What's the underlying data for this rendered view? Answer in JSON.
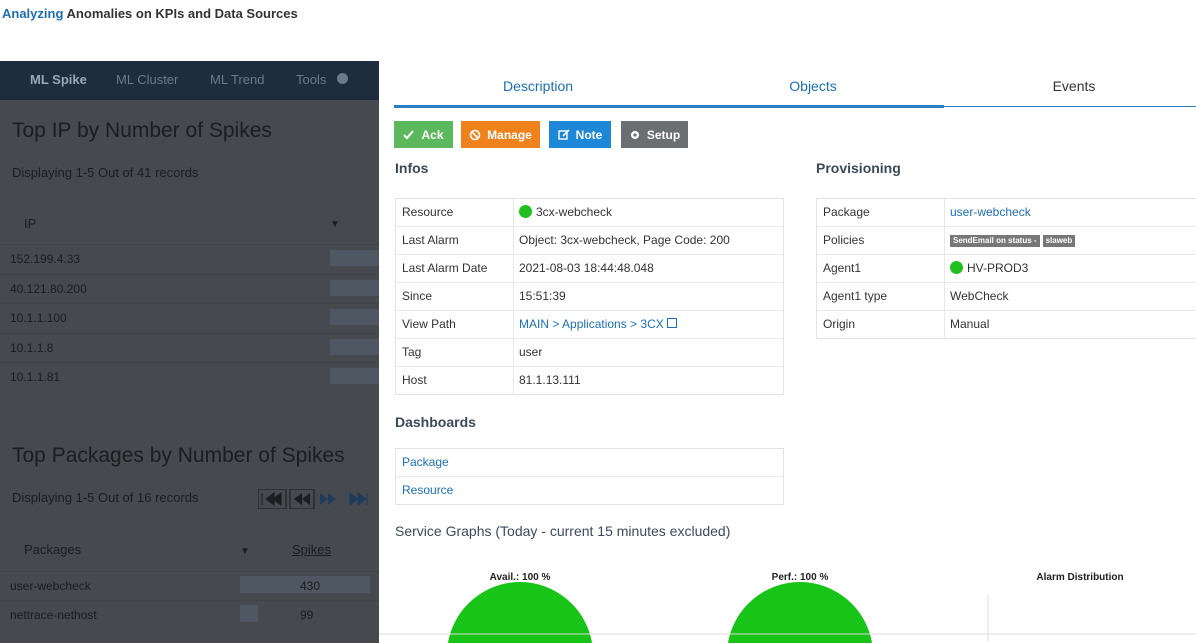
{
  "header": {
    "highlight": "Analyzing",
    "title": "Anomalies on KPIs and Data Sources"
  },
  "background": {
    "nav": [
      "ML Spike",
      "ML Cluster",
      "ML Trend",
      "Tools"
    ],
    "ip_section": {
      "title": "Top IP by Number of Spikes",
      "summary": "Displaying 1-5 Out of 41 records",
      "column": "IP",
      "rows": [
        "152.199.4.33",
        "40.121.80.200",
        "10.1.1.100",
        "10.1.1.8",
        "10.1.1.81"
      ]
    },
    "packages_section": {
      "title": "Top Packages by Number of Spikes",
      "summary": "Displaying 1-5 Out of 16 records",
      "columns": [
        "Packages",
        "Spikes"
      ],
      "rows": [
        {
          "name": "user-webcheck",
          "spikes": 430
        },
        {
          "name": "nettrace-nethost",
          "spikes": 99
        }
      ]
    }
  },
  "panel": {
    "tabs": [
      "Description",
      "Objects",
      "Events"
    ],
    "buttons": [
      "Ack",
      "Manage",
      "Note",
      "Setup"
    ],
    "infos": {
      "title": "Infos",
      "rows": [
        [
          "Resource",
          "3cx-webcheck"
        ],
        [
          "Last Alarm",
          "Object: 3cx-webcheck, Page Code: 200"
        ],
        [
          "Last Alarm Date",
          "2021-08-03 18:44:48.048"
        ],
        [
          "Since",
          "15:51:39"
        ],
        [
          "View Path",
          "MAIN > Applications > 3CX"
        ],
        [
          "Tag",
          "user"
        ],
        [
          "Host",
          "81.1.13.111"
        ]
      ]
    },
    "provisioning": {
      "title": "Provisioning",
      "rows": [
        [
          "Package",
          "user-webcheck"
        ],
        [
          "Policies",
          ""
        ],
        [
          "Agent1",
          "HV-PROD3"
        ],
        [
          "Agent1 type",
          "WebCheck"
        ],
        [
          "Origin",
          "Manual"
        ]
      ],
      "policies": [
        "SendEmail on status -",
        "slaweb"
      ]
    },
    "dashboards": {
      "title": "Dashboards",
      "rows": [
        "Package",
        "Resource"
      ]
    },
    "service_graphs": {
      "title": "Service Graphs (Today - current 15 minutes excluded)",
      "charts": [
        "Avail.: 100 %",
        "Perf.: 100 %",
        "Alarm Distribution"
      ]
    }
  }
}
